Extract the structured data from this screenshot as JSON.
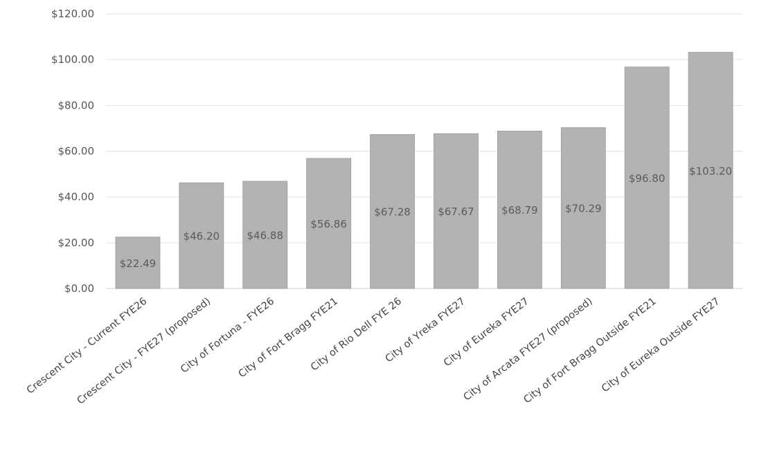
{
  "chart_data": {
    "type": "bar",
    "categories": [
      "Crescent City - Current FYE26",
      "Crescent City - FYE27 (proposed)",
      "City of Fortuna - FYE26",
      "City of Fort Bragg FYE21",
      "City of Rio Dell FYE 26",
      "City of Yreka FYE27",
      "City of Eureka FYE27",
      "City of Arcata FYE27 (proposed)",
      "City of Fort Bragg Outside FYE21",
      "City of Eureka Outside FYE27"
    ],
    "values": [
      22.49,
      46.2,
      46.88,
      56.86,
      67.28,
      67.67,
      68.79,
      70.29,
      96.8,
      103.2
    ],
    "data_labels": [
      "$22.49",
      "$46.20",
      "$46.88",
      "$56.86",
      "$67.28",
      "$67.67",
      "$68.79",
      "$70.29",
      "$96.80",
      "$103.20"
    ],
    "y_ticks": [
      "$0.00",
      "$20.00",
      "$40.00",
      "$60.00",
      "$80.00",
      "$100.00",
      "$120.00"
    ],
    "ylim": [
      0,
      120
    ],
    "ytick_step": 20,
    "title": "",
    "xlabel": "",
    "ylabel": "",
    "grid": true,
    "legend": "none",
    "colors": {
      "bar": "#b3b3b3",
      "bar_edge": "#9a9a9a",
      "grid": "#e2e2e2",
      "axis": "#cfcfcf"
    }
  }
}
